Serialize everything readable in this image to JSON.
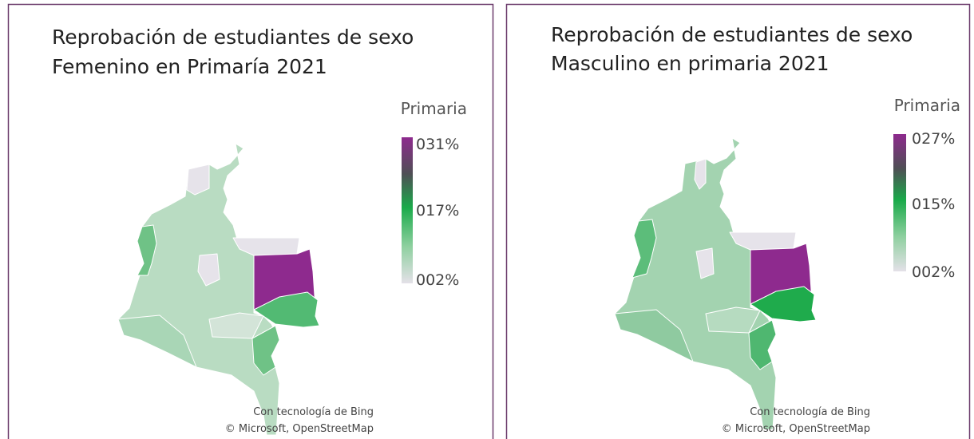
{
  "panels": [
    {
      "title_lines": [
        "Reprobación de estudiantes de sexo",
        "Femenino en Primaría 2021"
      ],
      "legend_title": "Primaria",
      "legend_labels": [
        "031%",
        "017%",
        "002%"
      ],
      "attribution": [
        "Con tecnología de Bing",
        "© Microsoft, OpenStreetMap"
      ]
    },
    {
      "title_lines": [
        "Reprobación de estudiantes de sexo",
        "Masculino en primaria 2021"
      ],
      "legend_title": "Primaria",
      "legend_labels": [
        "027%",
        "015%",
        "002%"
      ],
      "attribution": [
        "Con tecnología de Bing",
        "© Microsoft, OpenStreetMap"
      ]
    }
  ]
}
